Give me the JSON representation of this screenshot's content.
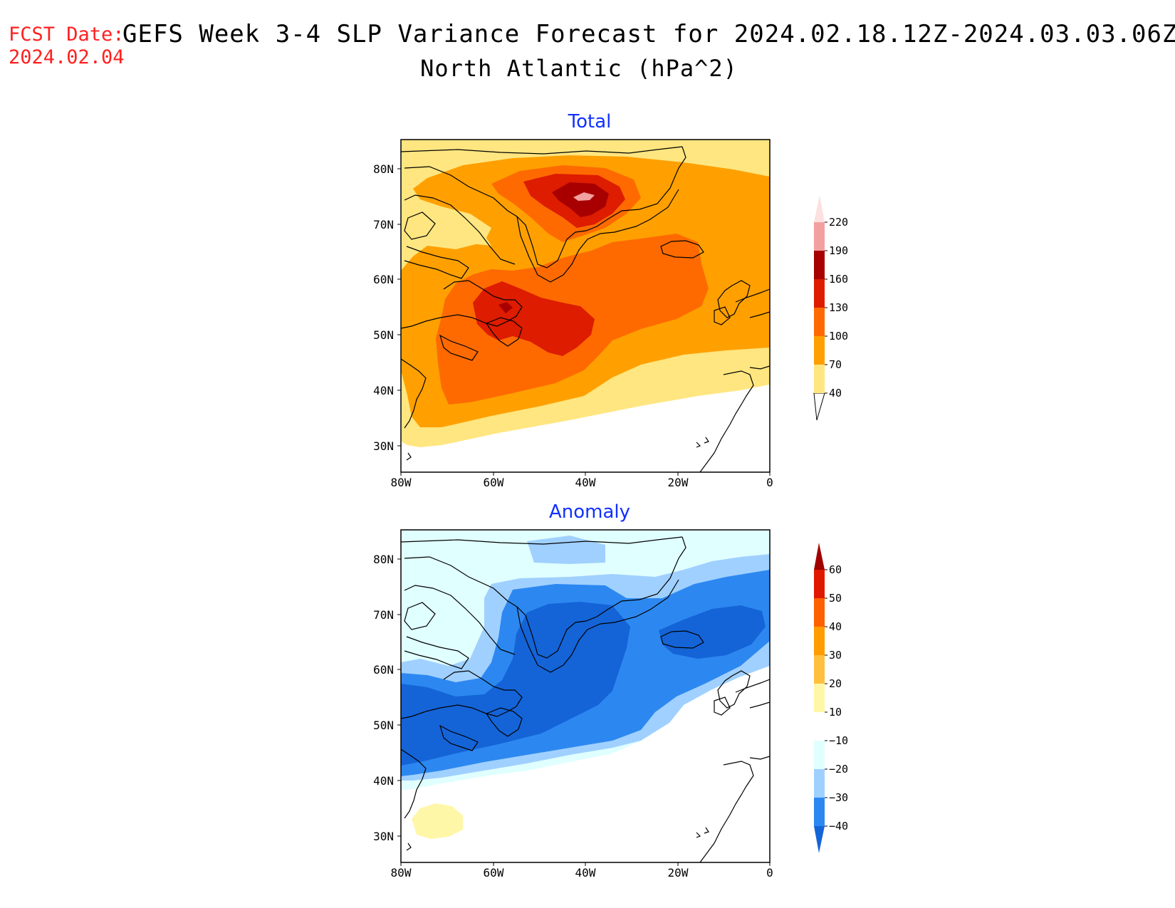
{
  "header": {
    "fcst_label": "FCST Date:",
    "fcst_date": "2024.02.04",
    "title": "GEFS Week 3-4 SLP Variance Forecast for 2024.02.18.12Z-2024.03.03.06Z",
    "subtitle": "North Atlantic (hPa^2)"
  },
  "axes": {
    "lon_ticks": [
      "80W",
      "60W",
      "40W",
      "20W",
      "0"
    ],
    "lat_ticks": [
      "80N",
      "70N",
      "60N",
      "50N",
      "40N",
      "30N"
    ],
    "lon_range": [
      -80,
      0
    ],
    "lat_range": [
      25,
      85
    ]
  },
  "panels": [
    {
      "title": "Total",
      "colorbar": {
        "labels": [
          "220",
          "190",
          "160",
          "130",
          "100",
          "70",
          "40"
        ],
        "colors": [
          "#fde0e0",
          "#f2a0a0",
          "#a80000",
          "#dd1c00",
          "#fe6a00",
          "#ffa000",
          "#ffe680"
        ]
      }
    },
    {
      "title": "Anomaly",
      "colorbar": {
        "labels": [
          "60",
          "50",
          "40",
          "30",
          "20",
          "10",
          "−10",
          "−20",
          "−30",
          "−40"
        ],
        "colors": [
          "#a00000",
          "#e01800",
          "#ff6000",
          "#ff9c00",
          "#ffc040",
          "#fff7a8",
          "#ffffff",
          "#e0ffff",
          "#a0d0ff",
          "#2c88f0",
          "#1464d8"
        ]
      }
    }
  ],
  "fill_colors": {
    "total": {
      "c40": "#ffe680",
      "c70": "#ffa000",
      "c100": "#fe6a00",
      "c130": "#dd1c00",
      "c160": "#a80000",
      "c190": "#f2a0a0"
    },
    "anomaly": {
      "neg10": "#e0ffff",
      "neg20": "#a0d0ff",
      "neg30": "#2c88f0",
      "neg40": "#1464d8",
      "pos10": "#fff7a8"
    }
  }
}
